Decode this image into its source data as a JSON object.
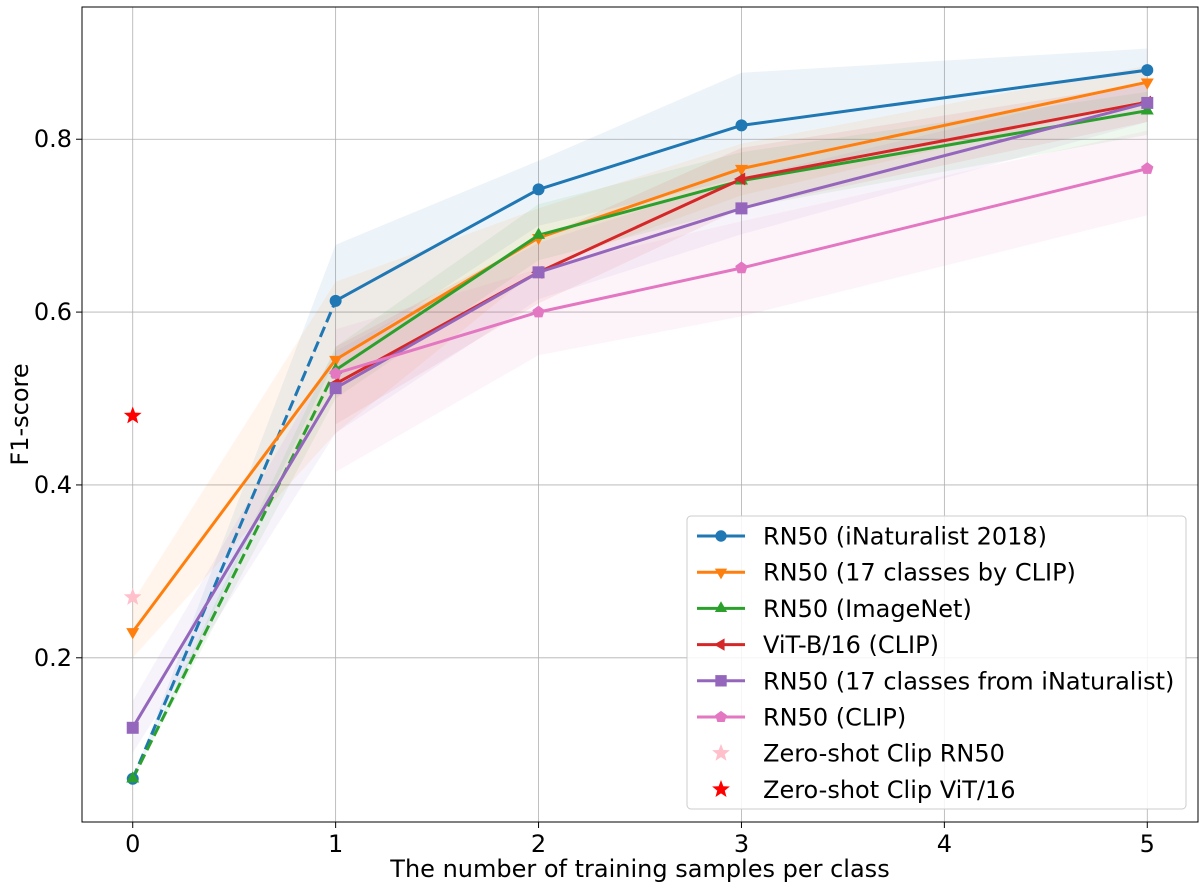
{
  "chart_data": {
    "type": "line",
    "title": "",
    "xlabel": "The number of training samples per class",
    "ylabel": "F1-score",
    "xlim": [
      -0.25,
      5.25
    ],
    "ylim": [
      0.01,
      0.953
    ],
    "xticks": [
      0,
      1,
      2,
      3,
      4,
      5
    ],
    "xtick_labels": [
      "0",
      "1",
      "2",
      "3",
      "4",
      "5"
    ],
    "yticks": [
      0.2,
      0.4,
      0.6,
      0.8
    ],
    "ytick_labels": [
      "0.2",
      "0.4",
      "0.6",
      "0.8"
    ],
    "grid": true,
    "legend_position": "lower-right",
    "series": [
      {
        "name": "RN50 (iNaturalist 2018)",
        "color": "#1f77b4",
        "marker": "circle",
        "x": [
          0,
          1,
          2,
          3,
          5
        ],
        "values": [
          0.06,
          0.613,
          0.742,
          0.816,
          0.88
        ],
        "dashed_first_segment": true,
        "band_lower": [
          0.06,
          0.545,
          0.7,
          0.755,
          0.845
        ],
        "band_upper": [
          0.06,
          0.678,
          0.775,
          0.877,
          0.905
        ]
      },
      {
        "name": "RN50 (17 classes by CLIP)",
        "color": "#ff7f0e",
        "marker": "triangle-down",
        "x": [
          0,
          1,
          2,
          3,
          5
        ],
        "values": [
          0.23,
          0.545,
          0.686,
          0.766,
          0.866
        ],
        "dashed_first_segment": false,
        "band_lower": [
          0.2,
          0.46,
          0.65,
          0.735,
          0.845
        ],
        "band_upper": [
          0.265,
          0.635,
          0.72,
          0.795,
          0.885
        ]
      },
      {
        "name": "RN50 (ImageNet)",
        "color": "#2ca02c",
        "marker": "triangle-up",
        "x": [
          0,
          1,
          2,
          3,
          5
        ],
        "values": [
          0.06,
          0.533,
          0.689,
          0.752,
          0.833
        ],
        "dashed_first_segment": true,
        "band_lower": [
          0.06,
          0.5,
          0.66,
          0.72,
          0.805
        ],
        "band_upper": [
          0.06,
          0.56,
          0.725,
          0.785,
          0.855
        ]
      },
      {
        "name": "ViT-B/16 (CLIP)",
        "color": "#d62728",
        "marker": "triangle-left",
        "x": [
          1,
          2,
          3,
          5
        ],
        "values": [
          0.517,
          0.646,
          0.754,
          0.843
        ],
        "dashed_first_segment": false,
        "band_lower": [
          0.47,
          0.61,
          0.72,
          0.82
        ],
        "band_upper": [
          0.56,
          0.685,
          0.79,
          0.865
        ]
      },
      {
        "name": "RN50 (17 classes from iNaturalist)",
        "color": "#9467bd",
        "marker": "square",
        "x": [
          0,
          1,
          2,
          3,
          5
        ],
        "values": [
          0.119,
          0.512,
          0.646,
          0.72,
          0.842
        ],
        "dashed_first_segment": false,
        "band_lower": [
          0.09,
          0.46,
          0.615,
          0.69,
          0.82
        ],
        "band_upper": [
          0.15,
          0.555,
          0.68,
          0.755,
          0.865
        ]
      },
      {
        "name": "RN50 (CLIP)",
        "color": "#e377c2",
        "marker": "pentagon",
        "x": [
          1,
          2,
          3,
          5
        ],
        "values": [
          0.529,
          0.6,
          0.651,
          0.766
        ],
        "dashed_first_segment": false,
        "band_lower": [
          0.415,
          0.55,
          0.595,
          0.712
        ],
        "band_upper": [
          0.58,
          0.65,
          0.705,
          0.81
        ]
      }
    ],
    "points": [
      {
        "name": "Zero-shot Clip RN50",
        "color": "#ffc0cb",
        "marker": "star",
        "x": 0,
        "y": 0.27
      },
      {
        "name": "Zero-shot Clip ViT/16",
        "color": "#ff0000",
        "marker": "star",
        "x": 0,
        "y": 0.48
      }
    ]
  }
}
